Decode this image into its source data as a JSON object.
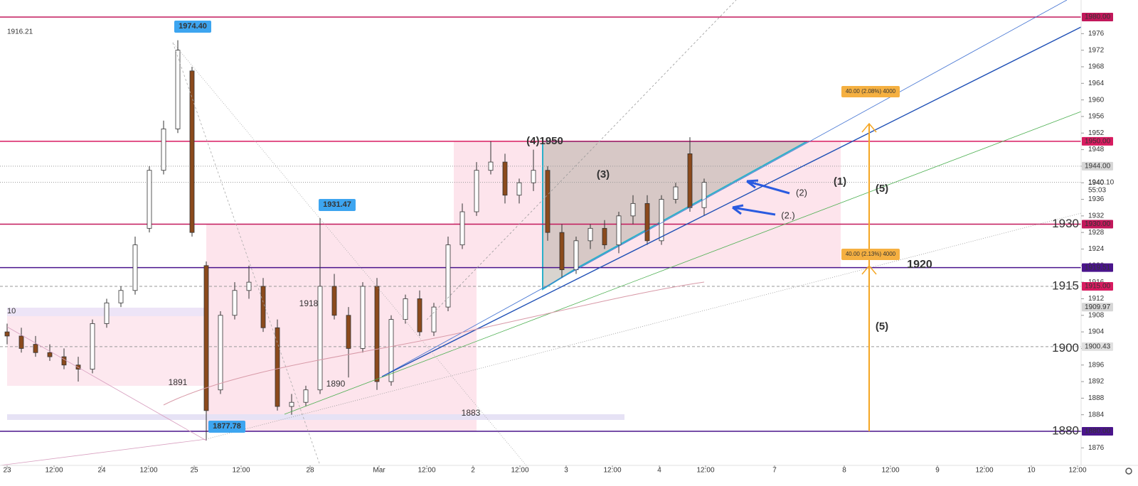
{
  "chart_data": {
    "type": "candlestick",
    "open": [
      1904,
      1903,
      1901,
      1899,
      1898,
      1896,
      1895,
      1906,
      1911,
      1914,
      1929,
      1943,
      1953,
      1967,
      1920,
      1890,
      1908,
      1914,
      1915,
      1905,
      1886,
      1887,
      1890,
      1915,
      1908,
      1900,
      1915,
      1892,
      1907,
      1912,
      1904,
      1910,
      1925,
      1933,
      1943,
      1945,
      1937,
      1940,
      1943,
      1928,
      1919,
      1926,
      1929,
      1925,
      1932,
      1935,
      1926,
      1936,
      1947,
      1934
    ],
    "high": [
      1906,
      1905,
      1903,
      1901,
      1900,
      1898,
      1907,
      1912,
      1915,
      1927,
      1944,
      1955,
      1974.4,
      1968,
      1921,
      1909,
      1916,
      1920,
      1917,
      1907,
      1889,
      1891,
      1931.47,
      1918,
      1910,
      1916,
      1917,
      1908,
      1913,
      1914,
      1911,
      1927,
      1935,
      1945,
      1950,
      1947,
      1941,
      1948,
      1944,
      1930,
      1927,
      1930,
      1931,
      1933,
      1937,
      1937,
      1937,
      1940,
      1951,
      1941
    ],
    "low": [
      1901,
      1899,
      1898,
      1897,
      1895,
      1892,
      1894,
      1905,
      1910,
      1913,
      1928,
      1942,
      1952,
      1927,
      1877.78,
      1889,
      1907,
      1912,
      1904,
      1885,
      1884,
      1886,
      1889,
      1907,
      1893,
      1899,
      1890,
      1891,
      1906,
      1903,
      1903,
      1909,
      1924,
      1932,
      1942,
      1935,
      1935,
      1938,
      1926,
      1917,
      1918,
      1924,
      1924,
      1923,
      1930,
      1925,
      1925,
      1935,
      1933,
      1932
    ],
    "close": [
      1903,
      1900,
      1899,
      1898,
      1896,
      1895,
      1906,
      1911,
      1914,
      1925,
      1943,
      1953,
      1972,
      1928,
      1885,
      1908,
      1914,
      1916,
      1905,
      1886,
      1887,
      1890,
      1915,
      1908,
      1900,
      1915,
      1892,
      1907,
      1912,
      1904,
      1910,
      1925,
      1933,
      1943,
      1945,
      1937,
      1940,
      1943,
      1928,
      1919,
      1926,
      1929,
      1925,
      1932,
      1935,
      1926,
      1936,
      1939,
      1934,
      1940.1
    ],
    "xlim": [
      -0.5,
      75.5
    ],
    "xticks": [
      {
        "value": 0,
        "label": "23"
      },
      {
        "value": 3.3,
        "label": "12:00"
      },
      {
        "value": 6.65,
        "label": "24"
      },
      {
        "value": 9.95,
        "label": "12:00"
      },
      {
        "value": 13.15,
        "label": "25"
      },
      {
        "value": 16.45,
        "label": "12:00"
      },
      {
        "value": 21.3,
        "label": "28"
      },
      {
        "value": 26.15,
        "label": "Mar"
      },
      {
        "value": 29.5,
        "label": "12:00"
      },
      {
        "value": 32.75,
        "label": "2"
      },
      {
        "value": 36.05,
        "label": "12:00"
      },
      {
        "value": 39.3,
        "label": "3"
      },
      {
        "value": 42.55,
        "label": "12:00"
      },
      {
        "value": 45.85,
        "label": "4"
      },
      {
        "value": 49.1,
        "label": "12:00"
      },
      {
        "value": 53.95,
        "label": "7"
      },
      {
        "value": 58.85,
        "label": "8"
      },
      {
        "value": 62.1,
        "label": "12:00"
      },
      {
        "value": 65.4,
        "label": "9"
      },
      {
        "value": 68.7,
        "label": "12:00"
      },
      {
        "value": 72,
        "label": "10"
      },
      {
        "value": 75.25,
        "label": "12:00"
      }
    ],
    "ylim": [
      1871.77,
      1984.12
    ],
    "yticks": [
      1876,
      1880,
      1884,
      1888,
      1892,
      1896,
      1900,
      1904,
      1908,
      1912,
      1916,
      1920,
      1924,
      1928,
      1932,
      1936,
      1940,
      1944,
      1948,
      1952,
      1956,
      1960,
      1964,
      1968,
      1972,
      1976
    ],
    "levels": [
      {
        "value": 1980,
        "label": "1980.00",
        "color": "#c2185b",
        "line": "solid"
      },
      {
        "value": 1950,
        "label": "1950.00",
        "color": "#d81b60",
        "line": "solid"
      },
      {
        "value": 1944,
        "label": "1944.00",
        "color": "#d6d6d6",
        "line": "dotted"
      },
      {
        "value": 1930,
        "label": "1930.00",
        "color": "#c2185b",
        "line": "solid"
      },
      {
        "value": 1919.51,
        "label": "1919.51",
        "color": "#4a148c",
        "line": "solid"
      },
      {
        "value": 1915,
        "label": "1915.00",
        "color": "#d81b60",
        "line": "dashed"
      },
      {
        "value": 1909.97,
        "label": "1909.97",
        "color": "#d6d6d6",
        "line": "none"
      },
      {
        "value": 1900.43,
        "label": "1900.43",
        "color": "#e0e0e0",
        "line": "dashed"
      },
      {
        "value": 1880,
        "label": "1880.00",
        "color": "#4a148c",
        "line": "solid"
      }
    ],
    "last_price": {
      "value": 1940.1,
      "label": "1940.10",
      "countdown": "55:03"
    },
    "big_levels": [
      1930,
      1915,
      1900,
      1880
    ],
    "callouts": [
      "1974.40",
      "1931.47",
      "1877.78"
    ],
    "notes": [
      "1916.21",
      "10",
      "1891",
      "1890",
      "1883",
      "1918",
      "(4)1950",
      "(3)",
      "(1)",
      "(2)",
      "(2.)",
      "(5)",
      "(5)",
      "1920"
    ],
    "measures": [
      "40.00 (2.08%) 4000",
      "40.00 (2.13%) 4000"
    ]
  }
}
